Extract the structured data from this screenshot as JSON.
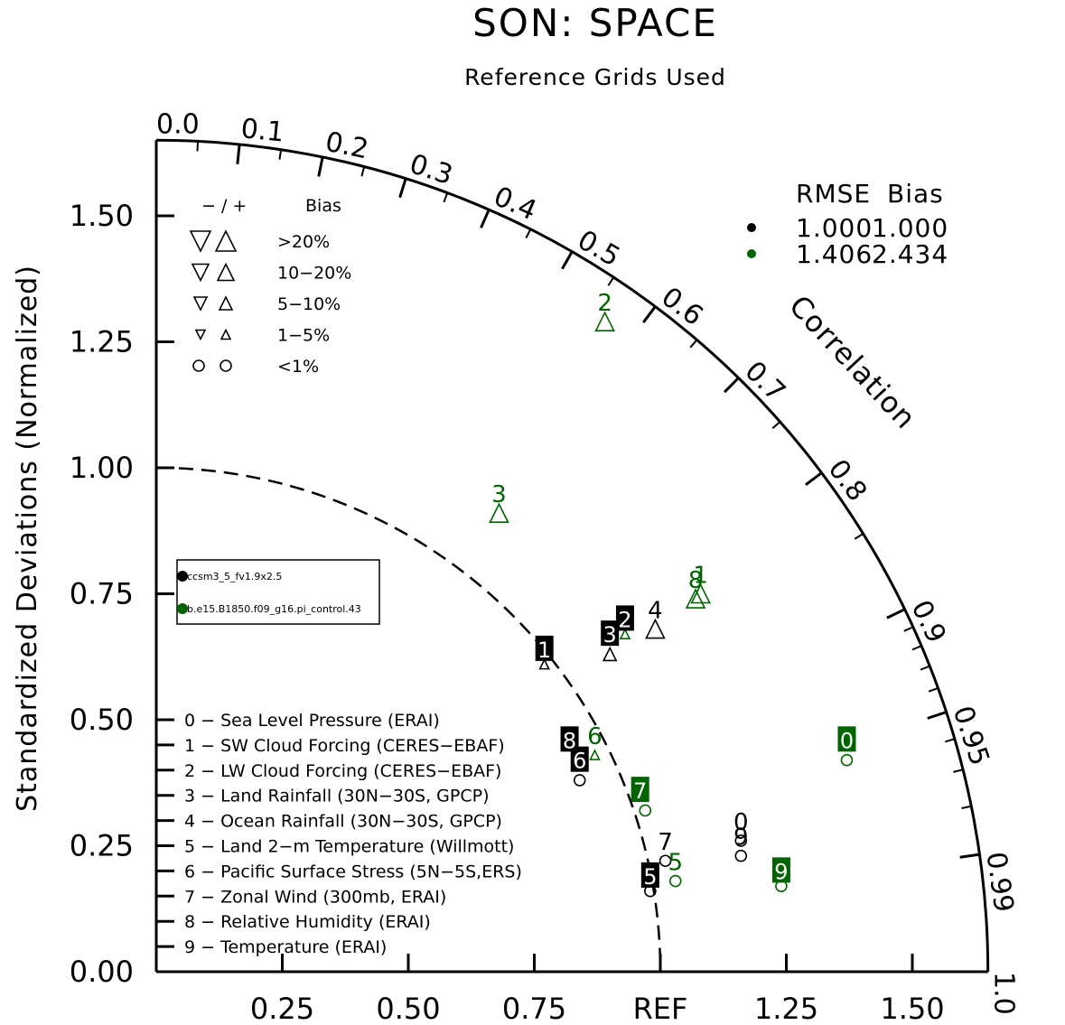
{
  "title": "SON: SPACE",
  "subtitle": "Reference Grids Used",
  "colors": {
    "model1": "#000000",
    "model2": "#006400"
  },
  "chart_data": {
    "type": "taylor-diagram",
    "title": "SON: SPACE",
    "subtitle": "Reference Grids Used",
    "ylabel": "Standardized Deviations (Normalized)",
    "correlation_label": "Correlation",
    "std_range": [
      0,
      1.65
    ],
    "y_ticks": [
      "0.00",
      "0.25",
      "0.50",
      "0.75",
      "1.00",
      "1.25",
      "1.50"
    ],
    "x_ticks": [
      "0.25",
      "0.50",
      "0.75",
      "REF",
      "1.25",
      "1.50"
    ],
    "correlation_ticks": [
      "0.0",
      "0.1",
      "0.2",
      "0.3",
      "0.4",
      "0.5",
      "0.6",
      "0.7",
      "0.8",
      "0.9",
      "0.95",
      "0.99",
      "1.0"
    ],
    "bias_legend": {
      "header_symbols": "− / +",
      "header_label": "Bias",
      "rows": [
        ">20%",
        "10−20%",
        "5−10%",
        "1−5%",
        "<1%"
      ]
    },
    "stats_table": {
      "headers": [
        "RMSE",
        "Bias"
      ],
      "rows": [
        {
          "rmse": "1.000",
          "bias": "1.000"
        },
        {
          "rmse": "1.406",
          "bias": "2.434"
        }
      ]
    },
    "cases": [
      "ccsm3_5_fv1.9x2.5",
      "b.e15.B1850.f09_g16.pi_control.43"
    ],
    "variables": [
      "0 − Sea Level Pressure (ERAI)",
      "1 − SW Cloud Forcing (CERES−EBAF)",
      "2 − LW Cloud Forcing (CERES−EBAF)",
      "3 − Land Rainfall (30N−30S, GPCP)",
      "4 − Ocean Rainfall (30N−30S, GPCP)",
      "5 − Land 2−m Temperature (Willmott)",
      "6 − Pacific Surface Stress (5N−5S,ERS)",
      "7 − Zonal Wind (300mb, ERAI)",
      "8 − Relative Humidity (ERAI)",
      "9 − Temperature (ERAI)"
    ],
    "points": [
      {
        "label": "0",
        "x": 1.16,
        "y": 0.26,
        "marker": "circle",
        "size": "small",
        "series": 0
      },
      {
        "label": "1",
        "x": 0.77,
        "y": 0.61,
        "marker": "up-triangle",
        "size": "small",
        "series": 0
      },
      {
        "label": "2",
        "x": 0.93,
        "y": 0.7,
        "marker": "up-triangle",
        "size": "small",
        "series": 0
      },
      {
        "label": "3",
        "x": 0.9,
        "y": 0.63,
        "marker": "up-triangle",
        "size": "medium",
        "series": 0
      },
      {
        "label": "4",
        "x": 0.99,
        "y": 0.68,
        "marker": "up-triangle",
        "size": "large",
        "series": 0
      },
      {
        "label": "5",
        "x": 0.98,
        "y": 0.16,
        "marker": "circle",
        "size": "small",
        "series": 0
      },
      {
        "label": "6",
        "x": 0.84,
        "y": 0.38,
        "marker": "circle",
        "size": "small",
        "series": 0
      },
      {
        "label": "7",
        "x": 1.01,
        "y": 0.22,
        "marker": "circle",
        "size": "small",
        "series": 0
      },
      {
        "label": "8",
        "x": 0.84,
        "y": 0.41,
        "marker": "circle",
        "size": "small",
        "series": 0
      },
      {
        "label": "9",
        "x": 1.16,
        "y": 0.23,
        "marker": "circle",
        "size": "small",
        "series": 0
      },
      {
        "label": "0",
        "x": 1.37,
        "y": 0.42,
        "marker": "circle",
        "size": "small",
        "series": 1
      },
      {
        "label": "1",
        "x": 1.08,
        "y": 0.75,
        "marker": "up-triangle",
        "size": "large",
        "series": 1
      },
      {
        "label": "2",
        "x": 0.89,
        "y": 1.29,
        "marker": "up-triangle",
        "size": "large",
        "series": 1
      },
      {
        "label": "3",
        "x": 0.68,
        "y": 0.91,
        "marker": "up-triangle",
        "size": "large",
        "series": 1
      },
      {
        "label": "4",
        "x": 0.93,
        "y": 0.67,
        "marker": "up-triangle",
        "size": "small",
        "series": 1
      },
      {
        "label": "5",
        "x": 1.03,
        "y": 0.18,
        "marker": "circle",
        "size": "small",
        "series": 1
      },
      {
        "label": "6",
        "x": 0.87,
        "y": 0.43,
        "marker": "up-triangle",
        "size": "small",
        "series": 1
      },
      {
        "label": "7",
        "x": 0.97,
        "y": 0.32,
        "marker": "circle",
        "size": "small",
        "series": 1
      },
      {
        "label": "8",
        "x": 1.07,
        "y": 0.74,
        "marker": "up-triangle",
        "size": "large",
        "series": 1
      },
      {
        "label": "9",
        "x": 1.24,
        "y": 0.17,
        "marker": "circle",
        "size": "small",
        "series": 1
      }
    ],
    "highlighted_labels": [
      {
        "label": "1",
        "x": 0.77,
        "y": 0.64,
        "series": 0
      },
      {
        "label": "2",
        "x": 0.93,
        "y": 0.7,
        "series": 0
      },
      {
        "label": "3",
        "x": 0.9,
        "y": 0.67,
        "series": 0
      },
      {
        "label": "5",
        "x": 0.98,
        "y": 0.19,
        "series": 0
      },
      {
        "label": "6",
        "x": 0.84,
        "y": 0.42,
        "series": 0
      },
      {
        "label": "8",
        "x": 0.82,
        "y": 0.46,
        "series": 0
      },
      {
        "label": "0",
        "x": 1.37,
        "y": 0.46,
        "series": 1
      },
      {
        "label": "7",
        "x": 0.96,
        "y": 0.36,
        "series": 1
      },
      {
        "label": "9",
        "x": 1.24,
        "y": 0.2,
        "series": 1
      }
    ]
  }
}
